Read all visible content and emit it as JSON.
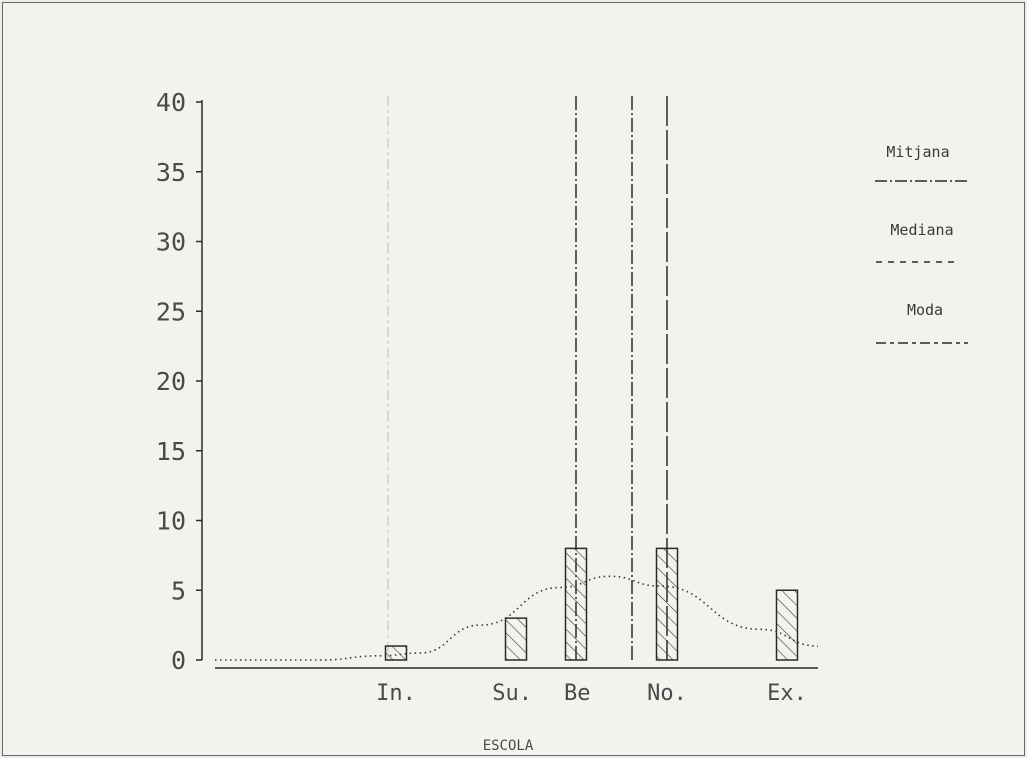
{
  "chart_data": {
    "type": "bar",
    "categories": [
      "In.",
      "Su.",
      "Be",
      "No.",
      "Ex."
    ],
    "values": [
      1,
      3,
      8,
      8,
      5
    ],
    "ylim": [
      0,
      40
    ],
    "yticks": [
      0,
      5,
      10,
      15,
      20,
      25,
      30,
      35,
      40
    ],
    "xlabel": "ESCOLA",
    "ylabel": "",
    "title": "",
    "grid": false,
    "bar_fill": "diagonal-hatch",
    "curve": {
      "style": "dotted",
      "values": [
        0,
        0,
        0,
        0.3,
        0.5,
        2.5,
        5.2,
        6,
        5.3,
        2.2,
        1
      ]
    },
    "reference_lines": [
      {
        "name": "Mitjana",
        "style": "dash-dot"
      },
      {
        "name": "Mediana",
        "style": "dashed"
      },
      {
        "name": "Moda",
        "style": "long-dash"
      }
    ],
    "legend_position": "right"
  },
  "colors": {
    "ink": "#2a2a2a",
    "background": "#f2f2ee"
  }
}
